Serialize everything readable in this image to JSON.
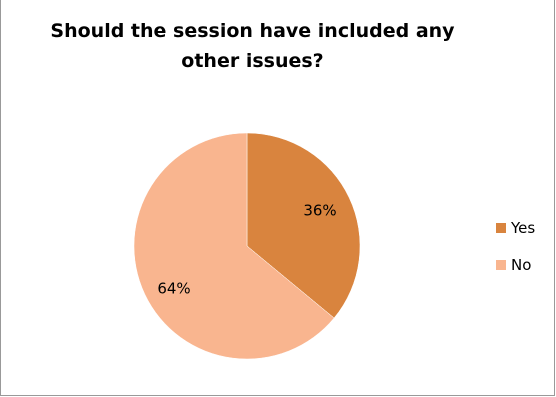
{
  "chart_data": {
    "type": "pie",
    "title_lines": [
      "Should the session have included any",
      "other issues?"
    ],
    "slices": [
      {
        "label": "Yes",
        "value": 36,
        "display": "36%",
        "color": "#D9843E"
      },
      {
        "label": "No",
        "value": 64,
        "display": "64%",
        "color": "#F9B58F"
      }
    ],
    "legend_position": "right"
  }
}
